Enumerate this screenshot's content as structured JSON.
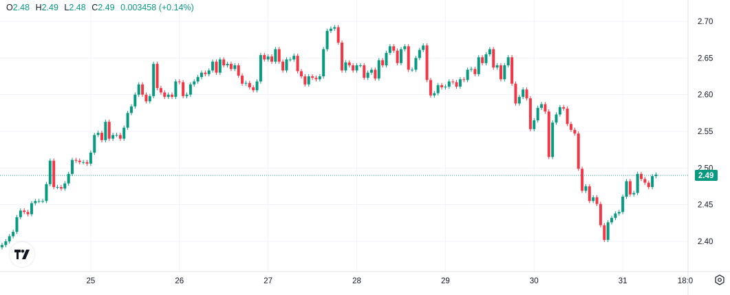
{
  "legend": {
    "open_label": "O",
    "open": "2.48",
    "high_label": "H",
    "high": "2.49",
    "low_label": "L",
    "low": "2.48",
    "close_label": "C",
    "close": "2.49",
    "change": "0.003458",
    "change_pct": "(+0.14%)"
  },
  "colors": {
    "up": "#089981",
    "down": "#F23645",
    "grid": "#f0f3fa",
    "text": "#131722"
  },
  "icons": {
    "logo": "tradingview-logo",
    "settings": "settings-hexagon-icon"
  },
  "chart_data": {
    "type": "candlestick",
    "interval": "1h",
    "y_ticks": [
      "2.70",
      "2.65",
      "2.60",
      "2.55",
      "2.50",
      "2.45",
      "2.40"
    ],
    "ylim": [
      2.38,
      2.72
    ],
    "x_ticks": [
      "25",
      "26",
      "27",
      "28",
      "29",
      "30",
      "31",
      "18:0"
    ],
    "grid": true,
    "last_price": 2.49,
    "last_price_label": "2.49",
    "first_open": 2.392,
    "close": [
      2.395,
      2.4,
      2.407,
      2.413,
      2.433,
      2.442,
      2.44,
      2.437,
      2.452,
      2.455,
      2.455,
      2.455,
      2.478,
      2.51,
      2.474,
      2.474,
      2.472,
      2.479,
      2.492,
      2.511,
      2.51,
      2.508,
      2.508,
      2.506,
      2.521,
      2.545,
      2.548,
      2.538,
      2.563,
      2.54,
      2.545,
      2.545,
      2.54,
      2.555,
      2.575,
      2.584,
      2.6,
      2.614,
      2.6,
      2.591,
      2.598,
      2.642,
      2.609,
      2.603,
      2.597,
      2.6,
      2.597,
      2.618,
      2.617,
      2.598,
      2.6,
      2.614,
      2.618,
      2.624,
      2.63,
      2.628,
      2.633,
      2.645,
      2.63,
      2.648,
      2.64,
      2.642,
      2.635,
      2.64,
      2.626,
      2.615,
      2.616,
      2.61,
      2.606,
      2.618,
      2.654,
      2.648,
      2.652,
      2.645,
      2.662,
      2.645,
      2.633,
      2.648,
      2.648,
      2.653,
      2.632,
      2.625,
      2.614,
      2.625,
      2.623,
      2.621,
      2.625,
      2.662,
      2.687,
      2.69,
      2.692,
      2.671,
      2.633,
      2.644,
      2.64,
      2.633,
      2.64,
      2.64,
      2.623,
      2.63,
      2.634,
      2.622,
      2.647,
      2.64,
      2.657,
      2.666,
      2.66,
      2.643,
      2.662,
      2.666,
      2.634,
      2.634,
      2.65,
      2.661,
      2.667,
      2.62,
      2.599,
      2.602,
      2.613,
      2.61,
      2.611,
      2.618,
      2.617,
      2.611,
      2.621,
      2.62,
      2.634,
      2.635,
      2.628,
      2.651,
      2.643,
      2.655,
      2.662,
      2.637,
      2.64,
      2.621,
      2.64,
      2.651,
      2.615,
      2.588,
      2.597,
      2.607,
      2.595,
      2.553,
      2.565,
      2.582,
      2.587,
      2.577,
      2.515,
      2.562,
      2.573,
      2.583,
      2.581,
      2.56,
      2.552,
      2.547,
      2.499,
      2.469,
      2.475,
      2.455,
      2.46,
      2.451,
      2.422,
      2.402,
      2.426,
      2.432,
      2.438,
      2.44,
      2.461,
      2.482,
      2.464,
      2.466,
      2.492,
      2.485,
      2.48,
      2.474,
      2.489,
      2.491
    ]
  }
}
